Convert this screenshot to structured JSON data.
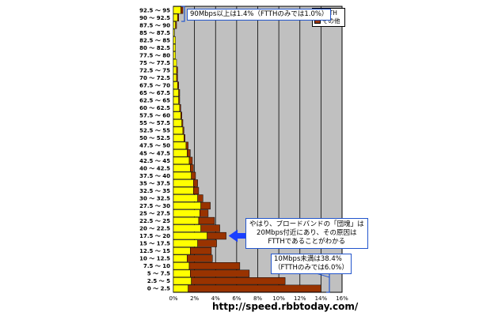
{
  "chart_data": {
    "type": "bar",
    "orientation": "horizontal",
    "stacked": true,
    "categories": [
      "0 ～ 2.5",
      "2.5 ～ 5",
      "5 ～ 7.5",
      "7.5 ～ 10",
      "10 ～ 12.5",
      "12.5 ～ 15",
      "15 ～ 17.5",
      "17.5 ～ 20",
      "20 ～ 22.5",
      "22.5 ～ 25",
      "25 ～ 27.5",
      "27.5 ～ 30",
      "30 ～ 32.5",
      "32.5 ～ 35",
      "35 ～ 37.5",
      "37.5 ～ 40",
      "40 ～ 42.5",
      "42.5 ～ 45",
      "45 ～ 47.5",
      "47.5 ～ 50",
      "50 ～ 52.5",
      "52.5 ～ 55",
      "55 ～ 57.5",
      "57.5 ～ 60",
      "60 ～ 62.5",
      "62.5 ～ 65",
      "65 ～ 67.5",
      "67.5 ～ 70",
      "70 ～ 72.5",
      "72.5 ～ 75",
      "75 ～ 77.5",
      "77.5 ～ 80",
      "80 ～ 82.5",
      "82.5 ～ 85",
      "85 ～ 87.5",
      "87.5 ～ 90",
      "90 ～ 92.5",
      "92.5 ～ 95"
    ],
    "series": [
      {
        "name": "FTTH",
        "color": "#ffff00",
        "values": [
          1.4,
          1.7,
          1.6,
          1.5,
          1.3,
          1.6,
          2.3,
          3.2,
          2.6,
          2.4,
          2.5,
          2.6,
          2.3,
          1.9,
          1.9,
          1.7,
          1.6,
          1.5,
          1.3,
          1.2,
          1.0,
          0.9,
          0.8,
          0.7,
          0.6,
          0.5,
          0.5,
          0.4,
          0.3,
          0.3,
          0.3,
          0.2,
          0.2,
          0.2,
          0.1,
          0.2,
          0.4,
          0.7
        ]
      },
      {
        "name": "その他",
        "color": "#993300",
        "values": [
          12.6,
          8.9,
          5.6,
          4.8,
          2.4,
          2.0,
          1.8,
          1.8,
          1.8,
          1.5,
          0.8,
          0.9,
          0.5,
          0.5,
          0.4,
          0.4,
          0.3,
          0.3,
          0.3,
          0.2,
          0.1,
          0.1,
          0.1,
          0.1,
          0.1,
          0.1,
          0.1,
          0.1,
          0.1,
          0.1,
          0.0,
          0.0,
          0.0,
          0.0,
          0.0,
          0.1,
          0.1,
          0.2
        ]
      }
    ],
    "x_ticks": [
      "0%",
      "2%",
      "4%",
      "6%",
      "8%",
      "10%",
      "12%",
      "14%",
      "16%"
    ],
    "xlim": [
      0,
      16
    ],
    "grid": true,
    "legend_position": "top-right",
    "plot_background": "#c0c0c0"
  },
  "annotations": {
    "top": "90Mbps以上は1.4%（FTTHのみでは1.0%）",
    "middle": [
      "やはり、ブロードバンドの「団塊」は",
      "20Mbps付近にあり、その原因は",
      "FTTHであることがわかる"
    ],
    "bottom": [
      "10Mbps未満は38.4%",
      "（FTTHのみでは6.0%）"
    ]
  },
  "source_url": "http://speed.rbbtoday.com/"
}
